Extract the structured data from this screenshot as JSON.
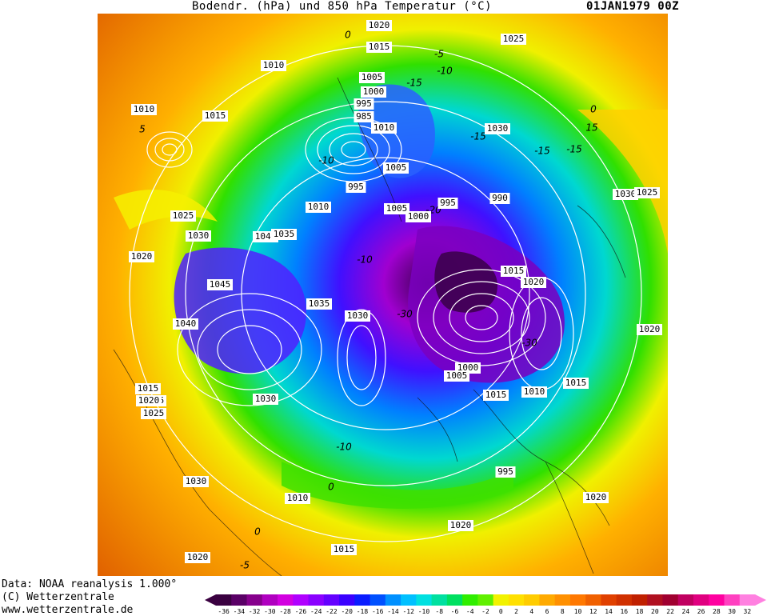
{
  "header": {
    "title": "Bodendr. (hPa) und 850 hPa Temperatur (°C)",
    "timestamp": "01JAN1979 00Z"
  },
  "footer": {
    "line1": "Data: NOAA reanalysis 1.000°",
    "line2": "(C) Wetterzentrale",
    "line3": "www.wetterzentrale.de"
  },
  "legend": {
    "ticks": [
      "-36",
      "-34",
      "-32",
      "-30",
      "-28",
      "-26",
      "-24",
      "-22",
      "-20",
      "-18",
      "-16",
      "-14",
      "-12",
      "-10",
      "-8",
      "-6",
      "-4",
      "-2",
      "0",
      "2",
      "4",
      "6",
      "8",
      "10",
      "12",
      "14",
      "16",
      "18",
      "20",
      "22",
      "24",
      "26",
      "28",
      "30",
      "32"
    ],
    "colors": [
      "#3a0040",
      "#5a0066",
      "#86008c",
      "#b000c0",
      "#d200e0",
      "#b000ff",
      "#8a00ff",
      "#6400ff",
      "#3a00ff",
      "#0a1cff",
      "#0050ff",
      "#0090ff",
      "#00c0ff",
      "#00e0e0",
      "#00e0a0",
      "#00e060",
      "#30ee00",
      "#60f000",
      "#f2f200",
      "#ffe000",
      "#ffcc00",
      "#ffaa00",
      "#ff9000",
      "#ff7800",
      "#f06000",
      "#e04000",
      "#d03000",
      "#c02000",
      "#b01020",
      "#a00030",
      "#c00060",
      "#e00080",
      "#ff00a0",
      "#ff40c0",
      "#ff80e0"
    ]
  },
  "map": {
    "isobar_labels": [
      {
        "text": "1020"
      },
      {
        "text": "1015"
      },
      {
        "text": "1025"
      },
      {
        "text": "1010"
      },
      {
        "text": "1010"
      },
      {
        "text": "1015"
      },
      {
        "text": "1005"
      },
      {
        "text": "1000"
      },
      {
        "text": "995"
      },
      {
        "text": "985"
      },
      {
        "text": "1030"
      },
      {
        "text": "1030"
      },
      {
        "text": "1025"
      },
      {
        "text": "1005"
      },
      {
        "text": "995"
      },
      {
        "text": "1005"
      },
      {
        "text": "1010"
      },
      {
        "text": "1000"
      },
      {
        "text": "1025"
      },
      {
        "text": "1030"
      },
      {
        "text": "1040"
      },
      {
        "text": "1035"
      },
      {
        "text": "1020"
      },
      {
        "text": "1045"
      },
      {
        "text": "1040"
      },
      {
        "text": "1035"
      },
      {
        "text": "1030"
      },
      {
        "text": "1015"
      },
      {
        "text": "1020"
      },
      {
        "text": "1025"
      },
      {
        "text": "1010"
      },
      {
        "text": "1020"
      },
      {
        "text": "1000"
      },
      {
        "text": "1005"
      },
      {
        "text": "1015"
      },
      {
        "text": "1010"
      },
      {
        "text": "1015"
      },
      {
        "text": "1020"
      },
      {
        "text": "1025"
      },
      {
        "text": "1030"
      },
      {
        "text": "995"
      },
      {
        "text": "1020"
      },
      {
        "text": "1030"
      },
      {
        "text": "1010"
      },
      {
        "text": "1015"
      },
      {
        "text": "1020"
      },
      {
        "text": "1020"
      },
      {
        "text": "1015"
      },
      {
        "text": "990"
      },
      {
        "text": "995"
      }
    ],
    "temperature_labels": [
      {
        "text": "0"
      },
      {
        "text": "-5"
      },
      {
        "text": "-10"
      },
      {
        "text": "-15"
      },
      {
        "text": "-15"
      },
      {
        "text": "0"
      },
      {
        "text": "5"
      },
      {
        "text": "-10"
      },
      {
        "text": "-10"
      },
      {
        "text": "-20"
      },
      {
        "text": "-30"
      },
      {
        "text": "-30"
      },
      {
        "text": "-10"
      },
      {
        "text": "0"
      },
      {
        "text": "0"
      },
      {
        "text": "-5"
      },
      {
        "text": "-10"
      },
      {
        "text": "15"
      },
      {
        "text": "-15"
      },
      {
        "text": "-15"
      }
    ]
  }
}
